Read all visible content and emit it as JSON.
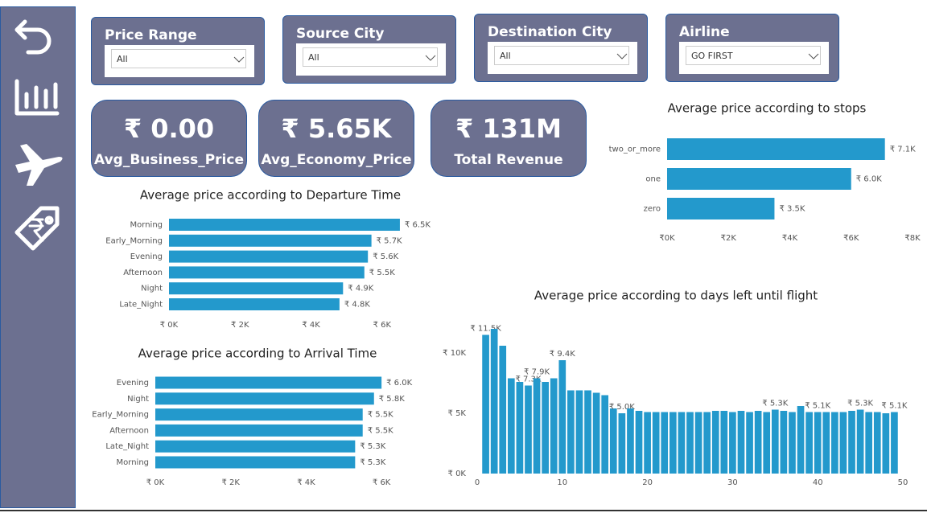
{
  "filters": [
    {
      "label": "Price Range",
      "value": "All"
    },
    {
      "label": "Source City",
      "value": "All"
    },
    {
      "label": "Destination City",
      "value": "All"
    },
    {
      "label": "Airline",
      "value": "GO FIRST"
    }
  ],
  "cards": [
    {
      "value": "₹ 0.00",
      "label": "Avg_Business_Price"
    },
    {
      "value": "₹ 5.65K",
      "label": "Avg_Economy_Price"
    },
    {
      "value": "₹ 131M",
      "label": "Total Revenue"
    }
  ],
  "chart_data": [
    {
      "type": "bar",
      "orientation": "horizontal",
      "title": "Average price according to stops",
      "color": "#2399cc",
      "categories": [
        "two_or_more",
        "one",
        "zero"
      ],
      "values": [
        7100,
        6000,
        3500
      ],
      "value_labels": [
        "₹ 7.1K",
        "₹ 6.0K",
        "₹ 3.5K"
      ],
      "xlim": [
        0,
        8000
      ],
      "xticks": [
        {
          "value": 0,
          "label": "₹0K"
        },
        {
          "value": 2000,
          "label": "₹2K"
        },
        {
          "value": 4000,
          "label": "₹4K"
        },
        {
          "value": 6000,
          "label": "₹6K"
        },
        {
          "value": 8000,
          "label": "₹8K"
        }
      ]
    },
    {
      "type": "bar",
      "orientation": "horizontal",
      "title": "Average price according to Departure Time",
      "color": "#2399cc",
      "categories": [
        "Morning",
        "Early_Morning",
        "Evening",
        "Afternoon",
        "Night",
        "Late_Night"
      ],
      "values": [
        6500,
        5700,
        5600,
        5500,
        4900,
        4800
      ],
      "value_labels": [
        "₹ 6.5K",
        "₹ 5.7K",
        "₹ 5.6K",
        "₹ 5.5K",
        "₹ 4.9K",
        "₹ 4.8K"
      ],
      "xlim": [
        0,
        7000
      ],
      "xticks": [
        {
          "value": 0,
          "label": "₹ 0K"
        },
        {
          "value": 2000,
          "label": "₹ 2K"
        },
        {
          "value": 4000,
          "label": "₹ 4K"
        },
        {
          "value": 6000,
          "label": "₹ 6K"
        }
      ]
    },
    {
      "type": "bar",
      "orientation": "horizontal",
      "title": "Average price according to Arrival Time",
      "color": "#2399cc",
      "categories": [
        "Evening",
        "Night",
        "Early_Morning",
        "Afternoon",
        "Late_Night",
        "Morning"
      ],
      "values": [
        6000,
        5800,
        5500,
        5500,
        5300,
        5300
      ],
      "value_labels": [
        "₹ 6.0K",
        "₹ 5.8K",
        "₹ 5.5K",
        "₹ 5.5K",
        "₹ 5.3K",
        "₹ 5.3K"
      ],
      "xlim": [
        0,
        7000
      ],
      "xticks": [
        {
          "value": 0,
          "label": "₹ 0K"
        },
        {
          "value": 2000,
          "label": "₹ 2K"
        },
        {
          "value": 4000,
          "label": "₹ 4K"
        },
        {
          "value": 6000,
          "label": "₹ 6K"
        }
      ]
    },
    {
      "type": "bar",
      "orientation": "vertical",
      "title": "Average price according to days left until flight",
      "color": "#2399cc",
      "x": [
        1,
        2,
        3,
        4,
        5,
        6,
        7,
        8,
        9,
        10,
        11,
        12,
        13,
        14,
        15,
        16,
        17,
        18,
        19,
        20,
        21,
        22,
        23,
        24,
        25,
        26,
        27,
        28,
        29,
        30,
        31,
        32,
        33,
        34,
        35,
        36,
        37,
        38,
        39,
        40,
        41,
        42,
        43,
        44,
        45,
        46,
        47,
        48,
        49
      ],
      "values": [
        11500,
        12000,
        10600,
        7900,
        7600,
        7300,
        7900,
        7600,
        7900,
        9400,
        6900,
        6900,
        6900,
        6700,
        6500,
        5400,
        5000,
        5400,
        5200,
        5100,
        5100,
        5100,
        5100,
        5100,
        5100,
        5100,
        5100,
        5200,
        5200,
        5100,
        5200,
        5100,
        5200,
        5100,
        5300,
        5200,
        5100,
        5600,
        5100,
        5100,
        5100,
        5100,
        5100,
        5200,
        5300,
        5100,
        5100,
        5000,
        5100
      ],
      "value_labels": [
        "₹ 11.5K",
        null,
        null,
        null,
        null,
        "₹ 7.3K",
        "₹ 7.9K",
        null,
        null,
        "₹ 9.4K",
        null,
        null,
        null,
        null,
        null,
        null,
        "₹ 5.0K",
        null,
        null,
        null,
        null,
        null,
        null,
        null,
        null,
        null,
        null,
        null,
        null,
        null,
        null,
        null,
        null,
        null,
        "₹ 5.3K",
        null,
        null,
        null,
        null,
        "₹ 5.1K",
        null,
        null,
        null,
        null,
        "₹ 5.3K",
        null,
        null,
        null,
        "₹ 5.1K"
      ],
      "xlim": [
        0,
        50
      ],
      "xticks": [
        0,
        10,
        20,
        30,
        40,
        50
      ],
      "ylim": [
        0,
        12500
      ],
      "yticks": [
        {
          "value": 0,
          "label": "₹ 0K"
        },
        {
          "value": 5000,
          "label": "₹ 5K"
        },
        {
          "value": 10000,
          "label": "₹ 10K"
        }
      ]
    }
  ]
}
